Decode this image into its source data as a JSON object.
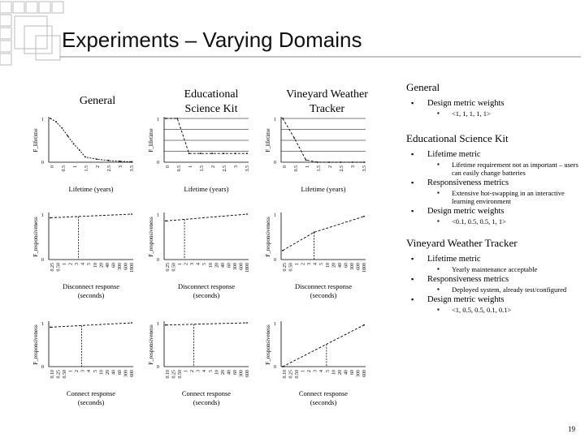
{
  "slide": {
    "title": "Experiments – Varying Domains",
    "page_number": "19"
  },
  "columns": [
    {
      "title": "General"
    },
    {
      "title": "Educational Science Kit"
    },
    {
      "title": "Vineyard Weather Tracker"
    }
  ],
  "axes": {
    "lifetime": {
      "xlabel": "Lifetime (years)",
      "ylabel": "F_lifetime",
      "ticks": [
        "0",
        "0.5",
        "1",
        "1.5",
        "2",
        "2.5",
        "3",
        "3.5"
      ]
    },
    "disconnect": {
      "xlabel": "Disconnect response (seconds)",
      "ylabel": "F_responsiveness",
      "ticks": [
        "0.25",
        "0.50",
        "1",
        "2",
        "3",
        "4",
        "5",
        "10",
        "20",
        "40",
        "60",
        "300",
        "600",
        "1800"
      ]
    },
    "connect": {
      "xlabel": "Connect response (seconds)",
      "ylabel": "F_responsiveness",
      "ticks": [
        "0.10",
        "0.25",
        "0.50",
        "1",
        "2",
        "3",
        "4",
        "5",
        "10",
        "20",
        "40",
        "60",
        "300",
        "600"
      ]
    },
    "y_ticks": [
      "0",
      "1"
    ]
  },
  "chart_data": [
    {
      "type": "line",
      "id": "general-lifetime",
      "x": [
        0,
        0.25,
        0.5,
        0.75,
        1,
        1.25,
        1.5,
        2,
        2.5,
        3,
        3.5
      ],
      "y": [
        1,
        0.92,
        0.78,
        0.6,
        0.42,
        0.28,
        0.12,
        0.07,
        0.04,
        0.02,
        0.01
      ],
      "ylim": [
        0,
        1
      ],
      "grid": false
    },
    {
      "type": "line",
      "id": "eduk-lifetime",
      "x": [
        0,
        0.5,
        1,
        1.5,
        2,
        2.5,
        3,
        3.5
      ],
      "y": [
        1,
        1,
        0.2,
        0.2,
        0.2,
        0.2,
        0.2,
        0.2
      ],
      "ylim": [
        0,
        1
      ],
      "grid": true
    },
    {
      "type": "line",
      "id": "vineyard-lifetime",
      "x": [
        0,
        0.5,
        1,
        1.5,
        2,
        2.5,
        3,
        3.5
      ],
      "y": [
        1,
        0.55,
        0.05,
        0,
        0,
        0,
        0,
        0
      ],
      "ylim": [
        0,
        1
      ],
      "grid": true
    },
    {
      "type": "line",
      "id": "general-disconnect",
      "x": [
        0,
        13
      ],
      "y": [
        0.92,
        1
      ],
      "ylim": [
        0,
        1
      ],
      "highlight_x": 4.5
    },
    {
      "type": "line",
      "id": "eduk-disconnect",
      "x": [
        0,
        13
      ],
      "y": [
        0.85,
        1
      ],
      "ylim": [
        0,
        1
      ],
      "highlight_x": 3
    },
    {
      "type": "line",
      "id": "vineyard-disconnect",
      "x": [
        0,
        5,
        13
      ],
      "y": [
        0.2,
        0.6,
        0.95
      ],
      "ylim": [
        0,
        1
      ],
      "highlight_x": 5
    },
    {
      "type": "line",
      "id": "general-connect",
      "x": [
        0,
        13
      ],
      "y": [
        0.9,
        1
      ],
      "ylim": [
        0,
        1
      ],
      "highlight_x": 5
    },
    {
      "type": "line",
      "id": "eduk-connect",
      "x": [
        0,
        13
      ],
      "y": [
        0.95,
        1
      ],
      "ylim": [
        0,
        1
      ],
      "highlight_x": 4.5
    },
    {
      "type": "line",
      "id": "vineyard-connect",
      "x": [
        0,
        13
      ],
      "y": [
        0,
        0.95
      ],
      "ylim": [
        0,
        1
      ],
      "highlight_x": 7
    }
  ],
  "right_panel": [
    {
      "heading": "General",
      "items": [
        {
          "text": "Design metric weights",
          "sub": [
            "<1, 1, 1, 1, 1>"
          ]
        }
      ]
    },
    {
      "heading": "Educational Science Kit",
      "items": [
        {
          "text": "Lifetime metric",
          "sub": [
            "Lifetime requirement not as important – users can easily change batteries"
          ]
        },
        {
          "text": "Responsiveness metrics",
          "sub": [
            "Extensive hot-swapping in an interactive learning environment"
          ]
        },
        {
          "text": "Design metric weights",
          "sub": [
            "<0.1, 0.5, 0.5, 1, 1>"
          ]
        }
      ]
    },
    {
      "heading": "Vineyard Weather Tracker",
      "items": [
        {
          "text": "Lifetime metric",
          "sub": [
            "Yearly maintenance acceptable"
          ]
        },
        {
          "text": "Responsiveness metrics",
          "sub": [
            "Deployed system, already test/configured"
          ]
        },
        {
          "text": "Design metric weights",
          "sub": [
            "<1, 0.5, 0.5, 0.1, 0.1>"
          ]
        }
      ]
    }
  ]
}
